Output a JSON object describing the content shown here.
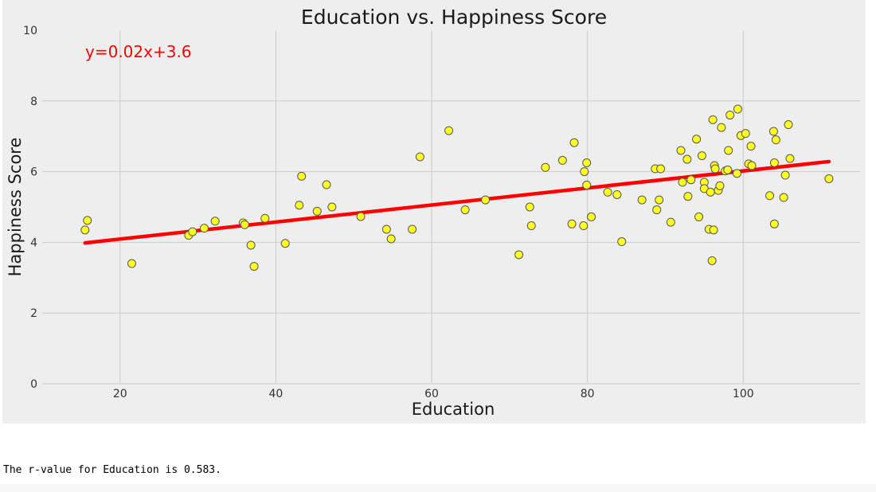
{
  "chart_data": {
    "type": "scatter",
    "title": "Education vs. Happiness Score",
    "xlabel": "Education",
    "ylabel": "Happiness Score",
    "xlim": [
      10,
      115
    ],
    "ylim": [
      0,
      10
    ],
    "xticks": [
      20,
      40,
      60,
      80,
      100
    ],
    "yticks": [
      0,
      2,
      4,
      6,
      8,
      10
    ],
    "grid": true,
    "annotation": "y=0.02x+3.6",
    "regression": {
      "slope": 0.0241,
      "intercept": 3.61,
      "x_range": [
        15.5,
        111
      ]
    },
    "colors": {
      "background": "#eeeeee",
      "grid": "#cbcbcb",
      "point_fill": "#ffff22",
      "point_edge": "#555555",
      "line": "#ff0000",
      "annotation": "#ff0000"
    },
    "points": [
      [
        15.5,
        4.35
      ],
      [
        15.8,
        4.62
      ],
      [
        21.5,
        3.4
      ],
      [
        28.8,
        4.2
      ],
      [
        29.3,
        4.3
      ],
      [
        30.8,
        4.4
      ],
      [
        32.2,
        4.6
      ],
      [
        35.8,
        4.55
      ],
      [
        36.0,
        4.5
      ],
      [
        36.8,
        3.92
      ],
      [
        37.2,
        3.32
      ],
      [
        38.6,
        4.68
      ],
      [
        41.2,
        3.97
      ],
      [
        43.0,
        5.05
      ],
      [
        43.3,
        5.87
      ],
      [
        45.3,
        4.88
      ],
      [
        46.5,
        5.63
      ],
      [
        47.2,
        5.0
      ],
      [
        50.9,
        4.73
      ],
      [
        54.2,
        4.37
      ],
      [
        54.8,
        4.1
      ],
      [
        57.5,
        4.37
      ],
      [
        58.5,
        6.42
      ],
      [
        62.2,
        7.16
      ],
      [
        64.3,
        4.92
      ],
      [
        66.9,
        5.2
      ],
      [
        71.2,
        3.65
      ],
      [
        72.6,
        5.0
      ],
      [
        72.8,
        4.47
      ],
      [
        74.6,
        6.12
      ],
      [
        76.8,
        6.32
      ],
      [
        78.0,
        4.52
      ],
      [
        78.3,
        6.82
      ],
      [
        79.5,
        4.47
      ],
      [
        79.6,
        6.0
      ],
      [
        79.9,
        6.25
      ],
      [
        79.9,
        5.62
      ],
      [
        80.5,
        4.72
      ],
      [
        82.6,
        5.42
      ],
      [
        83.8,
        5.35
      ],
      [
        84.4,
        4.02
      ],
      [
        87.0,
        5.2
      ],
      [
        88.7,
        6.08
      ],
      [
        88.9,
        4.92
      ],
      [
        89.2,
        5.2
      ],
      [
        89.4,
        6.08
      ],
      [
        90.7,
        4.57
      ],
      [
        92.0,
        6.6
      ],
      [
        92.2,
        5.7
      ],
      [
        92.8,
        6.35
      ],
      [
        92.9,
        5.3
      ],
      [
        93.3,
        5.77
      ],
      [
        94.0,
        6.92
      ],
      [
        94.3,
        4.72
      ],
      [
        94.7,
        6.45
      ],
      [
        95.0,
        5.7
      ],
      [
        95.0,
        5.52
      ],
      [
        95.6,
        4.37
      ],
      [
        95.8,
        5.42
      ],
      [
        96.0,
        3.48
      ],
      [
        96.1,
        7.47
      ],
      [
        96.2,
        4.35
      ],
      [
        96.3,
        6.17
      ],
      [
        96.4,
        6.08
      ],
      [
        96.8,
        5.47
      ],
      [
        97.0,
        5.6
      ],
      [
        97.2,
        7.25
      ],
      [
        97.7,
        6.02
      ],
      [
        98.0,
        6.05
      ],
      [
        98.1,
        6.6
      ],
      [
        98.3,
        7.6
      ],
      [
        99.2,
        5.95
      ],
      [
        99.3,
        7.77
      ],
      [
        99.7,
        7.02
      ],
      [
        100.3,
        7.08
      ],
      [
        100.7,
        6.22
      ],
      [
        101.0,
        6.72
      ],
      [
        101.1,
        6.17
      ],
      [
        103.4,
        5.32
      ],
      [
        103.9,
        7.14
      ],
      [
        104.0,
        6.25
      ],
      [
        104.0,
        4.52
      ],
      [
        104.2,
        6.9
      ],
      [
        105.2,
        5.27
      ],
      [
        105.4,
        5.9
      ],
      [
        105.8,
        7.33
      ],
      [
        106.0,
        6.37
      ],
      [
        111.0,
        5.8
      ]
    ]
  },
  "output": {
    "text": "The r-value for Education is 0.583."
  }
}
